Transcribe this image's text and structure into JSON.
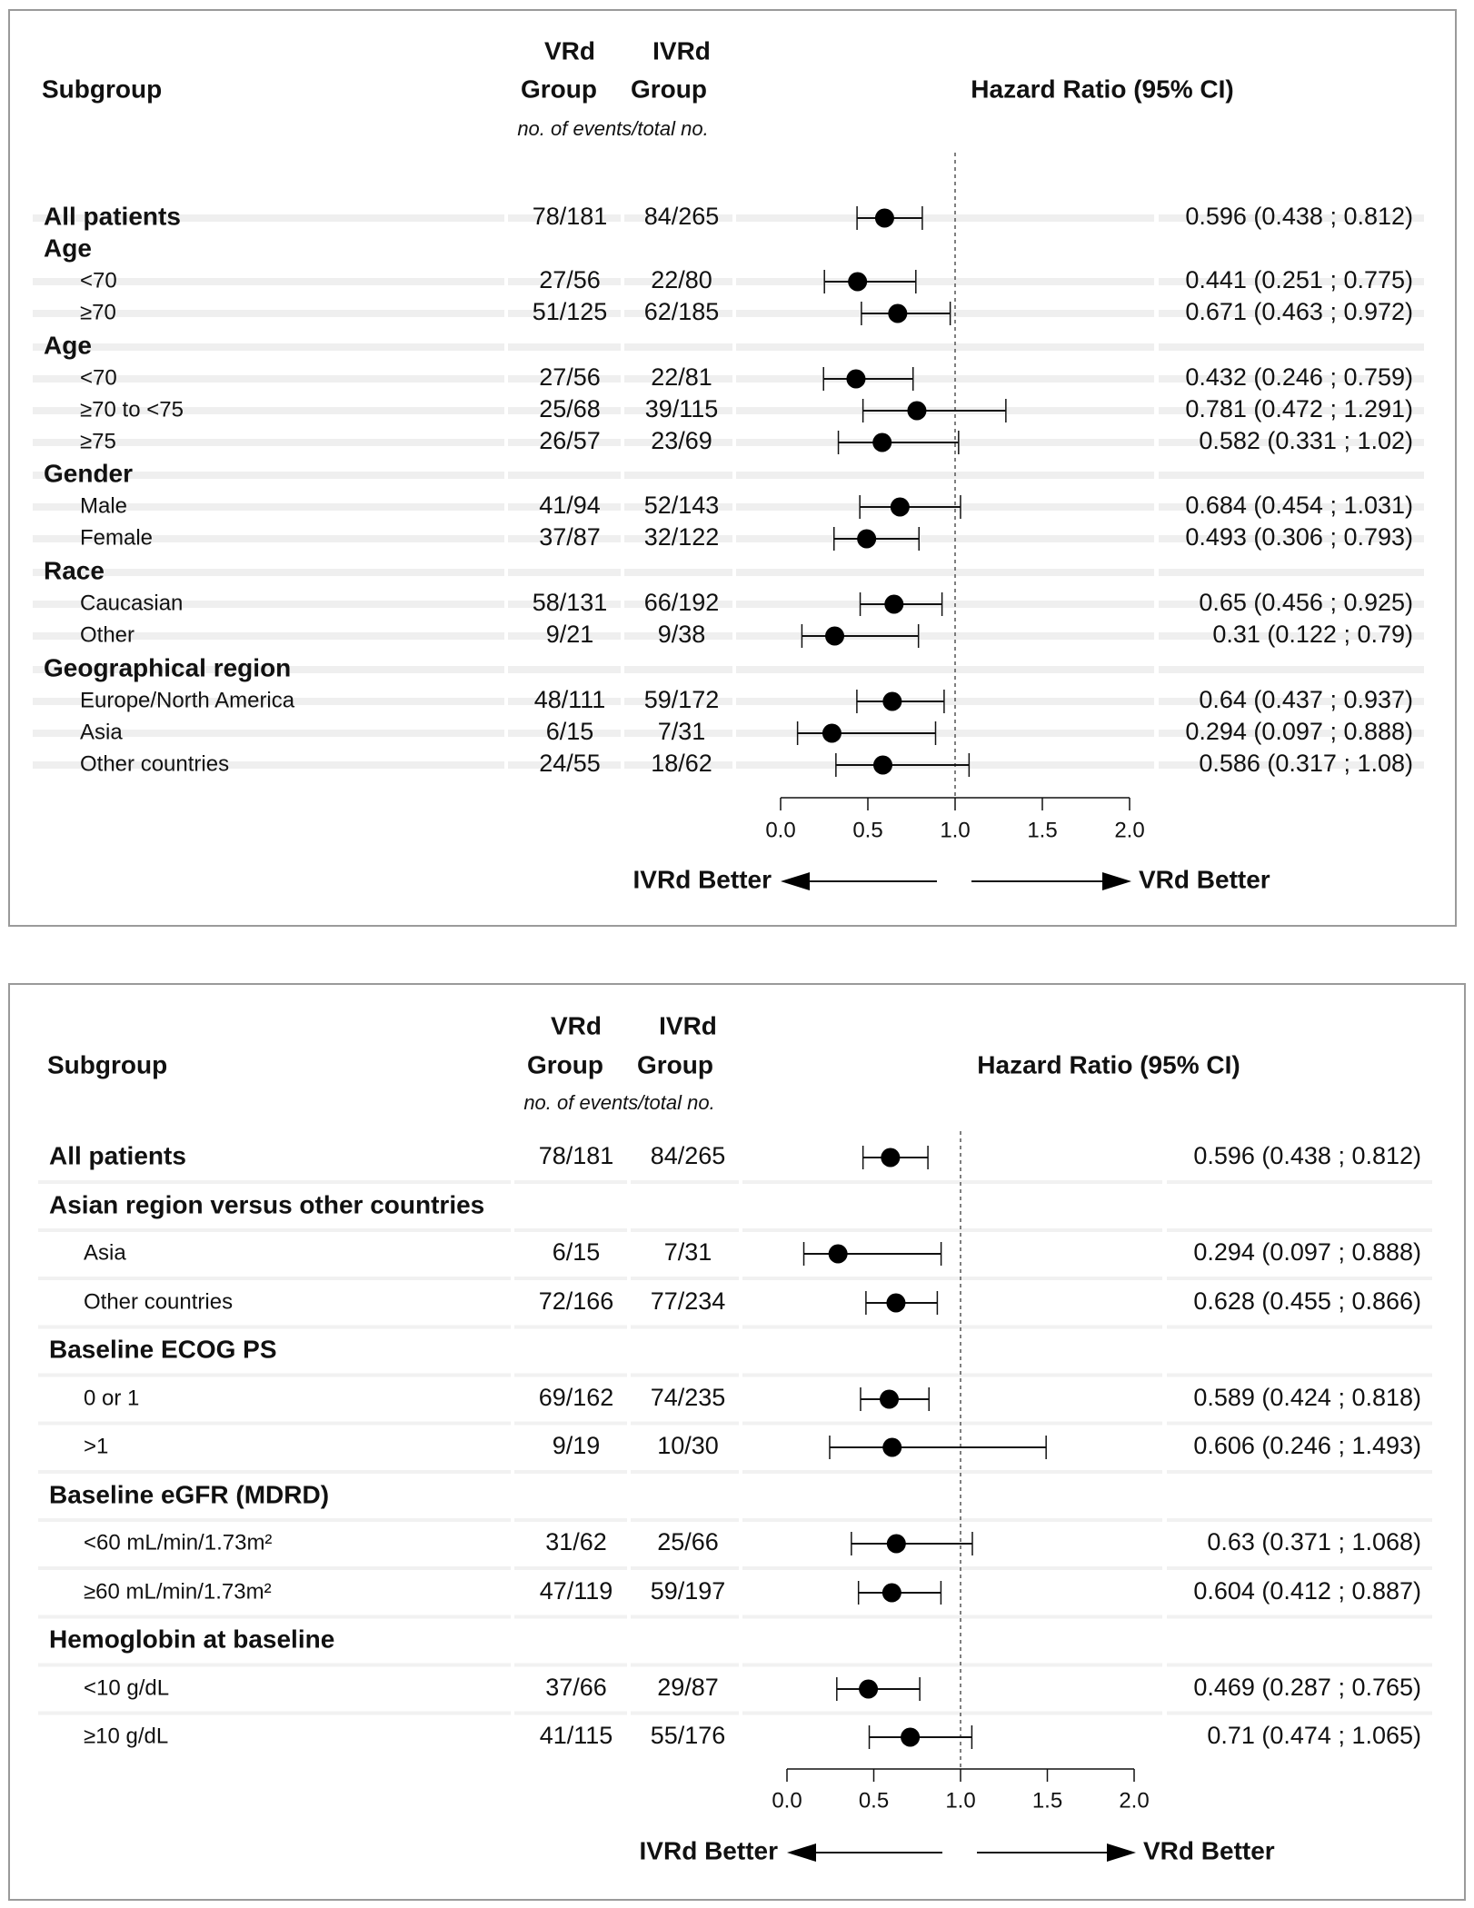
{
  "chart_data": [
    {
      "type": "forest",
      "headers": {
        "subgroup": "Subgroup",
        "vrd_top": "VRd",
        "ivrd_top": "IVRd",
        "group": "Group",
        "units": "no. of events/total no.",
        "hr": "Hazard Ratio (95% CI)"
      },
      "xlim": [
        0,
        2
      ],
      "xticks": [
        "0.0",
        "0.5",
        "1.0",
        "1.5",
        "2.0"
      ],
      "reference_line": 1.0,
      "left_label": "IVRd Better",
      "right_label": "VRd Better",
      "rows": [
        {
          "label": "All patients",
          "kind": "main",
          "vrd": "78/181",
          "ivrd": "84/265",
          "hr": 0.596,
          "lo": 0.438,
          "hi": 0.812,
          "hr_text": "0.596 (0.438 ; 0.812)"
        },
        {
          "label": "Age",
          "kind": "group"
        },
        {
          "label": "<70",
          "kind": "sub",
          "vrd": "27/56",
          "ivrd": "22/80",
          "hr": 0.441,
          "lo": 0.251,
          "hi": 0.775,
          "hr_text": "0.441 (0.251 ; 0.775)"
        },
        {
          "label": "≥70",
          "kind": "sub",
          "vrd": "51/125",
          "ivrd": "62/185",
          "hr": 0.671,
          "lo": 0.463,
          "hi": 0.972,
          "hr_text": "0.671 (0.463 ; 0.972)"
        },
        {
          "label": "Age",
          "kind": "group"
        },
        {
          "label": "<70",
          "kind": "sub",
          "vrd": "27/56",
          "ivrd": "22/81",
          "hr": 0.432,
          "lo": 0.246,
          "hi": 0.759,
          "hr_text": "0.432 (0.246 ; 0.759)"
        },
        {
          "label": "≥70 to <75",
          "kind": "sub",
          "vrd": "25/68",
          "ivrd": "39/115",
          "hr": 0.781,
          "lo": 0.472,
          "hi": 1.291,
          "hr_text": "0.781 (0.472 ; 1.291)"
        },
        {
          "label": "≥75",
          "kind": "sub",
          "vrd": "26/57",
          "ivrd": "23/69",
          "hr": 0.582,
          "lo": 0.331,
          "hi": 1.02,
          "hr_text": "0.582 (0.331 ; 1.02)"
        },
        {
          "label": "Gender",
          "kind": "group"
        },
        {
          "label": "Male",
          "kind": "sub",
          "vrd": "41/94",
          "ivrd": "52/143",
          "hr": 0.684,
          "lo": 0.454,
          "hi": 1.031,
          "hr_text": "0.684 (0.454 ; 1.031)"
        },
        {
          "label": "Female",
          "kind": "sub",
          "vrd": "37/87",
          "ivrd": "32/122",
          "hr": 0.493,
          "lo": 0.306,
          "hi": 0.793,
          "hr_text": "0.493 (0.306 ; 0.793)"
        },
        {
          "label": "Race",
          "kind": "group"
        },
        {
          "label": "Caucasian",
          "kind": "sub",
          "vrd": "58/131",
          "ivrd": "66/192",
          "hr": 0.65,
          "lo": 0.456,
          "hi": 0.925,
          "hr_text": "0.65 (0.456 ; 0.925)"
        },
        {
          "label": "Other",
          "kind": "sub",
          "vrd": "9/21",
          "ivrd": "9/38",
          "hr": 0.31,
          "lo": 0.122,
          "hi": 0.79,
          "hr_text": "0.31 (0.122 ; 0.79)"
        },
        {
          "label": "Geographical region",
          "kind": "group"
        },
        {
          "label": "Europe/North America",
          "kind": "sub",
          "vrd": "48/111",
          "ivrd": "59/172",
          "hr": 0.64,
          "lo": 0.437,
          "hi": 0.937,
          "hr_text": "0.64 (0.437 ; 0.937)"
        },
        {
          "label": "Asia",
          "kind": "sub",
          "vrd": "6/15",
          "ivrd": "7/31",
          "hr": 0.294,
          "lo": 0.097,
          "hi": 0.888,
          "hr_text": "0.294 (0.097 ; 0.888)"
        },
        {
          "label": "Other countries",
          "kind": "sub",
          "vrd": "24/55",
          "ivrd": "18/62",
          "hr": 0.586,
          "lo": 0.317,
          "hi": 1.08,
          "hr_text": "0.586 (0.317 ; 1.08)"
        }
      ]
    },
    {
      "type": "forest",
      "headers": {
        "subgroup": "Subgroup",
        "vrd_top": "VRd",
        "ivrd_top": "IVRd",
        "group": "Group",
        "units": "no. of events/total no.",
        "hr": "Hazard Ratio (95% CI)"
      },
      "xlim": [
        0,
        2
      ],
      "xticks": [
        "0.0",
        "0.5",
        "1.0",
        "1.5",
        "2.0"
      ],
      "reference_line": 1.0,
      "left_label": "IVRd Better",
      "right_label": "VRd Better",
      "rows": [
        {
          "label": "All patients",
          "kind": "main",
          "vrd": "78/181",
          "ivrd": "84/265",
          "hr": 0.596,
          "lo": 0.438,
          "hi": 0.812,
          "hr_text": "0.596 (0.438 ; 0.812)"
        },
        {
          "label": "Asian region versus other countries",
          "kind": "group"
        },
        {
          "label": "Asia",
          "kind": "sub",
          "vrd": "6/15",
          "ivrd": "7/31",
          "hr": 0.294,
          "lo": 0.097,
          "hi": 0.888,
          "hr_text": "0.294 (0.097 ; 0.888)"
        },
        {
          "label": "Other countries",
          "kind": "sub",
          "vrd": "72/166",
          "ivrd": "77/234",
          "hr": 0.628,
          "lo": 0.455,
          "hi": 0.866,
          "hr_text": "0.628 (0.455 ; 0.866)"
        },
        {
          "label": "Baseline ECOG PS",
          "kind": "group"
        },
        {
          "label": "0 or 1",
          "kind": "sub",
          "vrd": "69/162",
          "ivrd": "74/235",
          "hr": 0.589,
          "lo": 0.424,
          "hi": 0.818,
          "hr_text": "0.589 (0.424 ; 0.818)"
        },
        {
          "label": ">1",
          "kind": "sub",
          "vrd": "9/19",
          "ivrd": "10/30",
          "hr": 0.606,
          "lo": 0.246,
          "hi": 1.493,
          "hr_text": "0.606 (0.246 ; 1.493)"
        },
        {
          "label": "Baseline eGFR (MDRD)",
          "kind": "group"
        },
        {
          "label": "<60 mL/min/1.73m²",
          "kind": "sub",
          "vrd": "31/62",
          "ivrd": "25/66",
          "hr": 0.63,
          "lo": 0.371,
          "hi": 1.068,
          "hr_text": "0.63 (0.371 ; 1.068)"
        },
        {
          "label": "≥60 mL/min/1.73m²",
          "kind": "sub",
          "vrd": "47/119",
          "ivrd": "59/197",
          "hr": 0.604,
          "lo": 0.412,
          "hi": 0.887,
          "hr_text": "0.604 (0.412 ; 0.887)"
        },
        {
          "label": "Hemoglobin at baseline",
          "kind": "group"
        },
        {
          "label": "<10 g/dL",
          "kind": "sub",
          "vrd": "37/66",
          "ivrd": "29/87",
          "hr": 0.469,
          "lo": 0.287,
          "hi": 0.765,
          "hr_text": "0.469 (0.287 ; 0.765)"
        },
        {
          "label": "≥10 g/dL",
          "kind": "sub",
          "vrd": "41/115",
          "ivrd": "55/176",
          "hr": 0.71,
          "lo": 0.474,
          "hi": 1.065,
          "hr_text": "0.71 (0.474 ; 1.065)"
        }
      ]
    }
  ]
}
